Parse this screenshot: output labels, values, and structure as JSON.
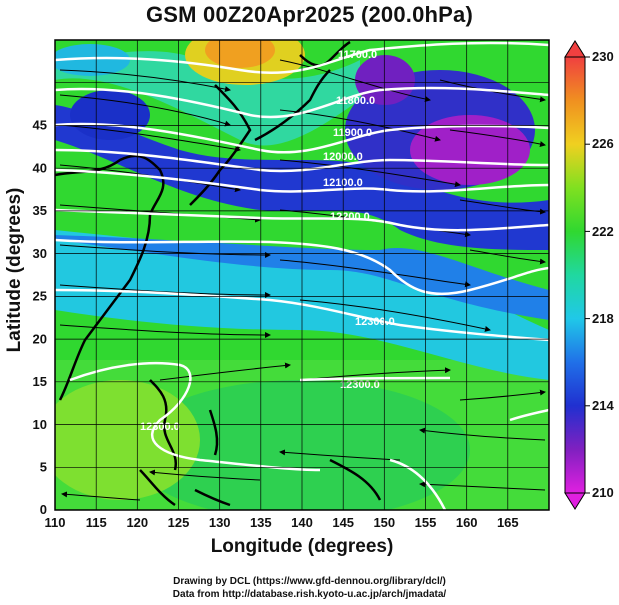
{
  "title": "GSM 00Z20Apr2025 (200.0hPa)",
  "x_axis": {
    "label": "Longitude (degrees)",
    "ticks": [
      "110",
      "115",
      "120",
      "125",
      "130",
      "135",
      "140",
      "145",
      "150",
      "155",
      "160",
      "165"
    ]
  },
  "y_axis": {
    "label": "Latitude (degrees)",
    "ticks": [
      "0",
      "5",
      "10",
      "15",
      "20",
      "25",
      "30",
      "35",
      "40",
      "45"
    ]
  },
  "colorbar": {
    "ticks": [
      "210",
      "214",
      "218",
      "222",
      "226",
      "230"
    ]
  },
  "contour_labels": [
    "11700.0",
    "11800.0",
    "11900.0",
    "12000.0",
    "12100.0",
    "12200.0",
    "12300.0",
    "12300.0",
    "12300.0"
  ],
  "credits": {
    "line1": "Drawing by DCL (https://www.gfd-dennou.org/library/dcl/)",
    "line2": "Data from http://database.rish.kyoto-u.ac.jp/arch/jmadata/"
  },
  "colors": {
    "purple": "#cc22cc",
    "blue": "#2030d0",
    "cyan": "#20c8e8",
    "green": "#30d830",
    "yellow": "#c8e020",
    "orange": "#f0a020",
    "red": "#f04040"
  }
}
